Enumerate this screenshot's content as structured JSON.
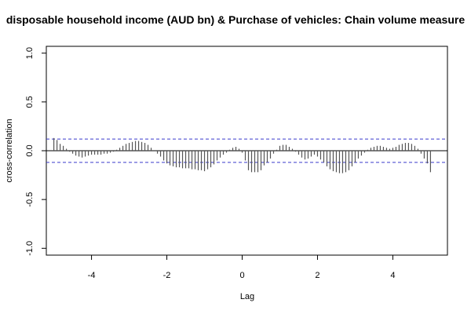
{
  "chart_data": {
    "type": "bar",
    "title": "disposable household income (AUD bn) & Purchase of vehicles: Chain volume measure",
    "xlabel": "Lag",
    "ylabel": "cross-correlation",
    "xlim": [
      -5.2,
      5.45
    ],
    "ylim": [
      -1.07,
      1.07
    ],
    "x_ticks": [
      "-4",
      "-2",
      "0",
      "2",
      "4"
    ],
    "y_ticks": [
      "-1.0",
      "-0.5",
      "0.0",
      "0.5",
      "1.0"
    ],
    "confidence_band": [
      0.12,
      -0.12
    ],
    "colors": {
      "lines": "#555555",
      "band": "#3a3acc",
      "axis": "#000000"
    },
    "x": [
      -5.0,
      -4.9167,
      -4.8333,
      -4.75,
      -4.6667,
      -4.5833,
      -4.5,
      -4.4167,
      -4.3333,
      -4.25,
      -4.1667,
      -4.0833,
      -4.0,
      -3.9167,
      -3.8333,
      -3.75,
      -3.6667,
      -3.5833,
      -3.5,
      -3.4167,
      -3.3333,
      -3.25,
      -3.1667,
      -3.0833,
      -3.0,
      -2.9167,
      -2.8333,
      -2.75,
      -2.6667,
      -2.5833,
      -2.5,
      -2.4167,
      -2.3333,
      -2.25,
      -2.1667,
      -2.0833,
      -2.0,
      -1.9167,
      -1.8333,
      -1.75,
      -1.6667,
      -1.5833,
      -1.5,
      -1.4167,
      -1.3333,
      -1.25,
      -1.1667,
      -1.0833,
      -1.0,
      -0.9167,
      -0.8333,
      -0.75,
      -0.6667,
      -0.5833,
      -0.5,
      -0.4167,
      -0.3333,
      -0.25,
      -0.1667,
      -0.0833,
      0.0,
      0.0833,
      0.1667,
      0.25,
      0.3333,
      0.4167,
      0.5,
      0.5833,
      0.6667,
      0.75,
      0.8333,
      0.9167,
      1.0,
      1.0833,
      1.1667,
      1.25,
      1.3333,
      1.4167,
      1.5,
      1.5833,
      1.6667,
      1.75,
      1.8333,
      1.9167,
      2.0,
      2.0833,
      2.1667,
      2.25,
      2.3333,
      2.4167,
      2.5,
      2.5833,
      2.6667,
      2.75,
      2.8333,
      2.9167,
      3.0,
      3.0833,
      3.1667,
      3.25,
      3.3333,
      3.4167,
      3.5,
      3.5833,
      3.6667,
      3.75,
      3.8333,
      3.9167,
      4.0,
      4.0833,
      4.1667,
      4.25,
      4.3333,
      4.4167,
      4.5,
      4.5833,
      4.6667,
      4.75,
      4.8333,
      4.9167,
      5.0
    ],
    "values": [
      0.13,
      0.11,
      0.07,
      0.05,
      0.02,
      -0.01,
      -0.03,
      -0.05,
      -0.06,
      -0.07,
      -0.06,
      -0.05,
      -0.04,
      -0.04,
      -0.04,
      -0.04,
      -0.03,
      -0.03,
      -0.02,
      -0.01,
      0.01,
      0.03,
      0.05,
      0.07,
      0.08,
      0.09,
      0.1,
      0.1,
      0.09,
      0.08,
      0.06,
      0.03,
      0.0,
      -0.03,
      -0.06,
      -0.1,
      -0.13,
      -0.15,
      -0.16,
      -0.17,
      -0.17,
      -0.18,
      -0.18,
      -0.18,
      -0.19,
      -0.19,
      -0.2,
      -0.2,
      -0.21,
      -0.19,
      -0.17,
      -0.14,
      -0.1,
      -0.07,
      -0.04,
      -0.02,
      0.01,
      0.03,
      0.04,
      0.02,
      -0.02,
      -0.1,
      -0.2,
      -0.22,
      -0.22,
      -0.22,
      -0.2,
      -0.15,
      -0.12,
      -0.08,
      -0.03,
      0.01,
      0.05,
      0.06,
      0.06,
      0.04,
      0.02,
      -0.01,
      -0.04,
      -0.07,
      -0.09,
      -0.08,
      -0.06,
      -0.04,
      -0.06,
      -0.09,
      -0.12,
      -0.16,
      -0.19,
      -0.21,
      -0.22,
      -0.23,
      -0.23,
      -0.22,
      -0.2,
      -0.16,
      -0.12,
      -0.08,
      -0.05,
      -0.02,
      0.01,
      0.03,
      0.04,
      0.05,
      0.05,
      0.04,
      0.03,
      0.02,
      0.03,
      0.04,
      0.06,
      0.07,
      0.08,
      0.08,
      0.07,
      0.05,
      0.02,
      -0.03,
      -0.08,
      -0.13,
      -0.22
    ]
  }
}
